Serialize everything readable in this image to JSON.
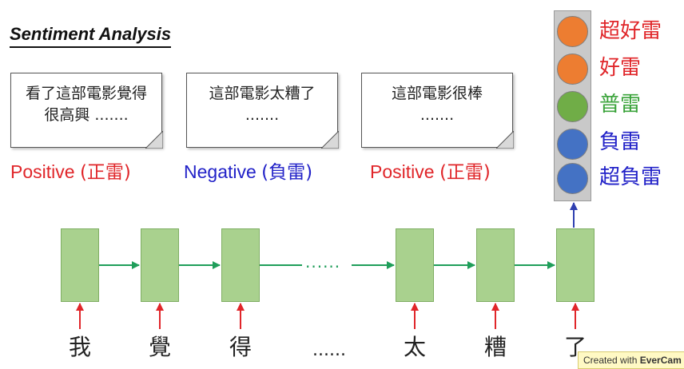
{
  "title": "Sentiment Analysis",
  "reviews": [
    {
      "text": "看了這部電影覺得很高興 .......",
      "label_en": "Positive",
      "label_cn": "(正雷)",
      "color": "#e0262a"
    },
    {
      "text": "這部電影太糟了 .......",
      "label_en": "Negative",
      "label_cn": "(負雷)",
      "color": "#2222c8"
    },
    {
      "text": "這部電影很棒 .......",
      "label_en": "Positive",
      "label_cn": "(正雷)",
      "color": "#e0262a"
    }
  ],
  "classes": [
    {
      "label": "超好雷",
      "circle_color": "#ed7d31",
      "text_color": "#e0262a"
    },
    {
      "label": "好雷",
      "circle_color": "#ed7d31",
      "text_color": "#e0262a"
    },
    {
      "label": "普雷",
      "circle_color": "#70ad47",
      "text_color": "#3aa33a"
    },
    {
      "label": "負雷",
      "circle_color": "#4472c4",
      "text_color": "#2222c8"
    },
    {
      "label": "超負雷",
      "circle_color": "#4472c4",
      "text_color": "#2222c8"
    }
  ],
  "sequence": {
    "words": [
      "我",
      "覺",
      "得",
      "......",
      "太",
      "糟",
      "了"
    ],
    "ellipsis": "......",
    "cell_color": "#a9d18e",
    "input_arrow_color": "#e0262a",
    "recurrent_arrow_color": "#1f9e5a",
    "output_arrow_color": "#2f3fb0"
  },
  "watermark": {
    "prefix": "Created with ",
    "brand": "EverCam"
  }
}
